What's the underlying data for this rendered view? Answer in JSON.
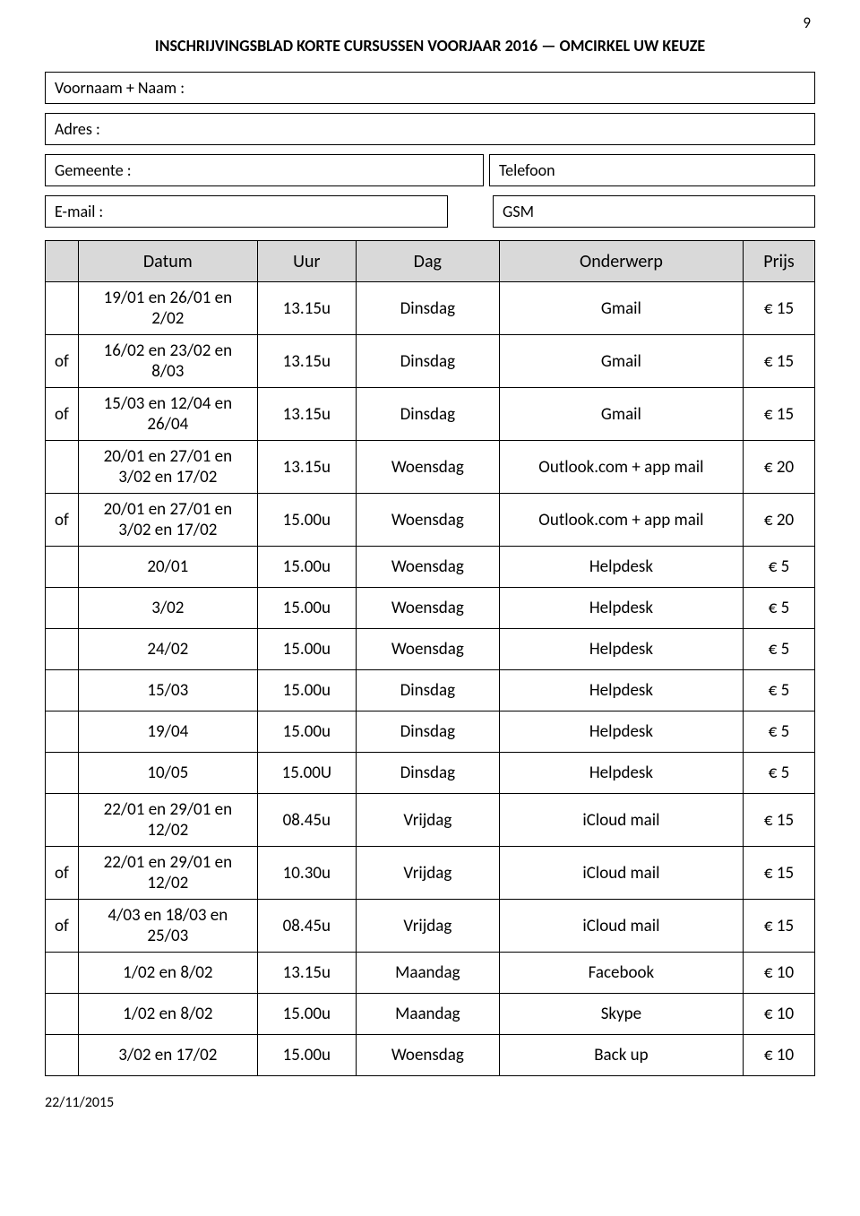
{
  "page_number": "9",
  "doc_title": "INSCHRIJVINGSBLAD KORTE CURSUSSEN  VOORJAAR 2016 — OMCIRKEL UW KEUZE",
  "fields": {
    "voornaam": "Voornaam + Naam :",
    "adres": "Adres :",
    "gemeente": "Gemeente :",
    "telefoon": "Telefoon",
    "email": "E-mail :",
    "gsm": "GSM"
  },
  "headers": {
    "of": "",
    "datum": "Datum",
    "uur": "Uur",
    "dag": "Dag",
    "onderwerp": "Onderwerp",
    "prijs": "Prijs"
  },
  "rows": [
    {
      "of": "",
      "datum": [
        "19/01 en 26/01 en",
        "2/02"
      ],
      "uur": "13.15u",
      "dag": "Dinsdag",
      "onderwerp": "Gmail",
      "prijs": "€ 15",
      "tall": true
    },
    {
      "of": "of",
      "datum": [
        "16/02 en 23/02 en",
        "8/03"
      ],
      "uur": "13.15u",
      "dag": "Dinsdag",
      "onderwerp": "Gmail",
      "prijs": "€ 15",
      "tall": true
    },
    {
      "of": "of",
      "datum": [
        "15/03 en 12/04 en",
        "26/04"
      ],
      "uur": "13.15u",
      "dag": "Dinsdag",
      "onderwerp": "Gmail",
      "prijs": "€ 15",
      "tall": true
    },
    {
      "of": "",
      "datum": [
        "20/01 en 27/01 en",
        "3/02 en 17/02"
      ],
      "uur": "13.15u",
      "dag": "Woensdag",
      "onderwerp": "Outlook.com + app mail",
      "prijs": "€ 20",
      "tall": true
    },
    {
      "of": "of",
      "datum": [
        "20/01 en 27/01 en",
        "3/02 en 17/02"
      ],
      "uur": "15.00u",
      "dag": "Woensdag",
      "onderwerp": "Outlook.com + app mail",
      "prijs": "€ 20",
      "tall": true
    },
    {
      "of": "",
      "datum": [
        "20/01"
      ],
      "uur": "15.00u",
      "dag": "Woensdag",
      "onderwerp": "Helpdesk",
      "prijs": "€ 5"
    },
    {
      "of": "",
      "datum": [
        "3/02"
      ],
      "uur": "15.00u",
      "dag": "Woensdag",
      "onderwerp": "Helpdesk",
      "prijs": "€ 5"
    },
    {
      "of": "",
      "datum": [
        "24/02"
      ],
      "uur": "15.00u",
      "dag": "Woensdag",
      "onderwerp": "Helpdesk",
      "prijs": "€ 5"
    },
    {
      "of": "",
      "datum": [
        "15/03"
      ],
      "uur": "15.00u",
      "dag": "Dinsdag",
      "onderwerp": "Helpdesk",
      "prijs": "€ 5"
    },
    {
      "of": "",
      "datum": [
        "19/04"
      ],
      "uur": "15.00u",
      "dag": "Dinsdag",
      "onderwerp": "Helpdesk",
      "prijs": "€ 5"
    },
    {
      "of": "",
      "datum": [
        "10/05"
      ],
      "uur": "15.00U",
      "dag": "Dinsdag",
      "onderwerp": "Helpdesk",
      "prijs": "€ 5"
    },
    {
      "of": "",
      "datum": [
        "22/01 en 29/01 en",
        "12/02"
      ],
      "uur": "08.45u",
      "dag": "Vrijdag",
      "onderwerp": "iCloud mail",
      "prijs": "€ 15",
      "tall": true
    },
    {
      "of": "of",
      "datum": [
        "22/01 en 29/01 en",
        "12/02"
      ],
      "uur": "10.30u",
      "dag": "Vrijdag",
      "onderwerp": "iCloud mail",
      "prijs": "€ 15",
      "tall": true
    },
    {
      "of": "of",
      "datum": [
        "4/03 en 18/03 en",
        "25/03"
      ],
      "uur": "08.45u",
      "dag": "Vrijdag",
      "onderwerp": "iCloud mail",
      "prijs": "€ 15",
      "tall": true
    },
    {
      "of": "",
      "datum": [
        "1/02 en 8/02"
      ],
      "uur": "13.15u",
      "dag": "Maandag",
      "onderwerp": "Facebook",
      "prijs": "€ 10"
    },
    {
      "of": "",
      "datum": [
        "1/02 en 8/02"
      ],
      "uur": "15.00u",
      "dag": "Maandag",
      "onderwerp": "Skype",
      "prijs": "€ 10"
    },
    {
      "of": "",
      "datum": [
        "3/02 en 17/02"
      ],
      "uur": "15.00u",
      "dag": "Woensdag",
      "onderwerp": "Back up",
      "prijs": "€ 10"
    }
  ],
  "footer_date": "22/11/2015"
}
